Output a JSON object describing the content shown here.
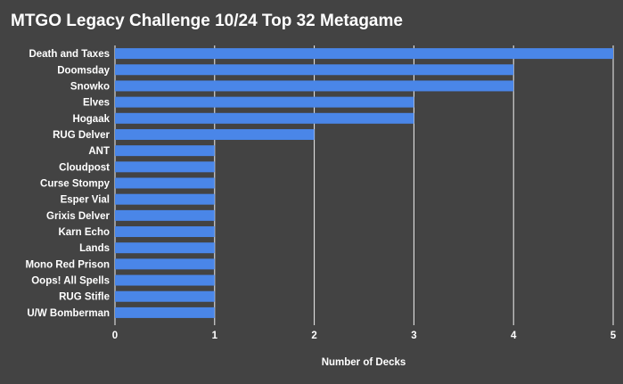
{
  "chart_data": {
    "type": "bar",
    "orientation": "horizontal",
    "title": "MTGO Legacy Challenge 10/24 Top 32 Metagame",
    "xlabel": "Number of Decks",
    "ylabel": "",
    "xlim": [
      0,
      5
    ],
    "xticks": [
      "0",
      "1",
      "2",
      "3",
      "4",
      "5"
    ],
    "grid": true,
    "categories": [
      "Death and Taxes",
      "Doomsday",
      "Snowko",
      "Elves",
      "Hogaak",
      "RUG Delver",
      "ANT",
      "Cloudpost",
      "Curse Stompy",
      "Esper Vial",
      "Grixis Delver",
      "Karn Echo",
      "Lands",
      "Mono Red Prison",
      "Oops! All Spells",
      "RUG Stifle",
      "U/W Bomberman"
    ],
    "values": [
      5,
      4,
      4,
      3,
      3,
      2,
      1,
      1,
      1,
      1,
      1,
      1,
      1,
      1,
      1,
      1,
      1
    ],
    "colors": {
      "background": "#434343",
      "bar": "#4a86e8",
      "text": "#ffffff",
      "grid": "#f2f2f2"
    }
  }
}
